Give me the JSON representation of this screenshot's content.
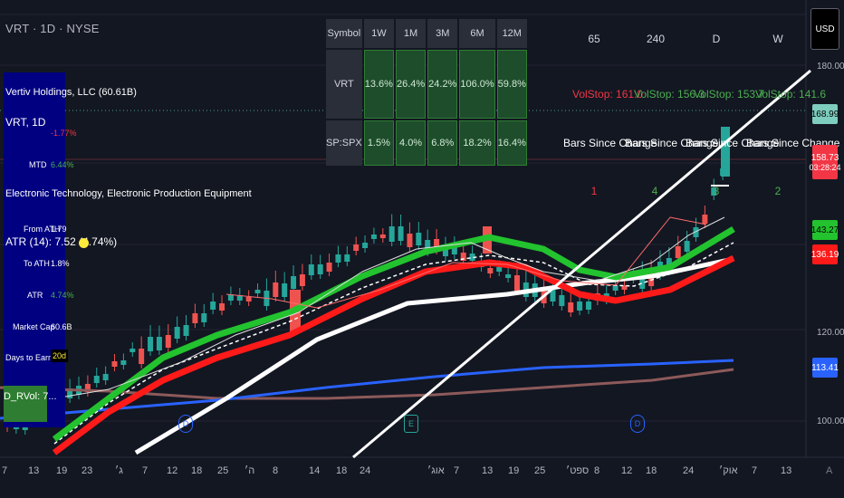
{
  "header": {
    "title": "VRT · 1D · NYSE",
    "currency": "USD"
  },
  "timeframes": [
    "65",
    "240",
    "D",
    "W"
  ],
  "volstops": [
    {
      "label": "VolStop: 161.0",
      "color": "#f23645"
    },
    {
      "label": "VolStop: 156.3",
      "color": "#4caf50"
    },
    {
      "label": "VolStop: 153.7",
      "color": "#4caf50"
    },
    {
      "label": "VolStop: 141.6",
      "color": "#4caf50"
    }
  ],
  "bars_since": {
    "label": "Bars Since Change",
    "values": [
      {
        "v": "1",
        "color": "#f23645"
      },
      {
        "v": "4",
        "color": "#4caf50"
      },
      {
        "v": "3",
        "color": "#4caf50"
      },
      {
        "v": "2",
        "color": "#4caf50"
      }
    ]
  },
  "perf_table": {
    "headers": [
      "Symbol",
      "1W",
      "1M",
      "3M",
      "6M",
      "12M"
    ],
    "rows": [
      [
        "VRT",
        "13.6%",
        "26.4%",
        "24.2%",
        "106.0%",
        "59.8%"
      ],
      [
        "SP:SPX",
        "1.5%",
        "4.0%",
        "6.8%",
        "18.2%",
        "16.4%"
      ]
    ]
  },
  "info": {
    "company": "Vertiv Holdings, LLC (60.61B)",
    "symbol": "VRT, 1D",
    "daily_change": "-1.77%",
    "mtd_label": "MTD",
    "mtd": "6.44%",
    "sector": "Electronic Technology, Electronic Production Equipment",
    "from_ath_label": "From ATH",
    "from_ath": "1.79",
    "atr_line": "ATR (14): 7.52 (4.74%)",
    "to_ath_label": "To ATH",
    "to_ath": "1.8%",
    "atr_label": "ATR",
    "atr": "4.74%",
    "mcap_label": "Market Cap",
    "mcap": "60.6B",
    "earn_label": "Days to Earnings",
    "earn": "20d",
    "rvol": "D_RVol: 7..."
  },
  "price_axis": [
    "180.00",
    "120.00",
    "100.00"
  ],
  "price_labels": [
    {
      "v": "168.99",
      "bg": "#7ecdbf",
      "fg": "#000"
    },
    {
      "v": "158.73",
      "bg": "#f23645",
      "fg": "#fff",
      "sub": "03:28:24"
    },
    {
      "v": "143.27",
      "bg": "#22c32e",
      "fg": "#000"
    },
    {
      "v": "136.19",
      "bg": "#ff1a1a",
      "fg": "#fff"
    },
    {
      "v": "113.41",
      "bg": "#2962ff",
      "fg": "#fff"
    }
  ],
  "x_axis": [
    "7",
    "13",
    "19",
    "23",
    "ג׳",
    "7",
    "12",
    "18",
    "25",
    "ה׳",
    "8",
    "14",
    "18",
    "24",
    "אוג׳",
    "7",
    "13",
    "19",
    "25",
    "ספט׳",
    "8",
    "12",
    "18",
    "24",
    "אוק׳",
    "7",
    "13"
  ],
  "markers": [
    {
      "t": "D"
    },
    {
      "t": "E"
    },
    {
      "t": "D"
    }
  ],
  "colors": {
    "bg": "#131722",
    "green": "#22c32e",
    "red": "#ff1a1a",
    "white": "#ffffff",
    "blue": "#2962ff",
    "brown": "#8d5a5a"
  }
}
